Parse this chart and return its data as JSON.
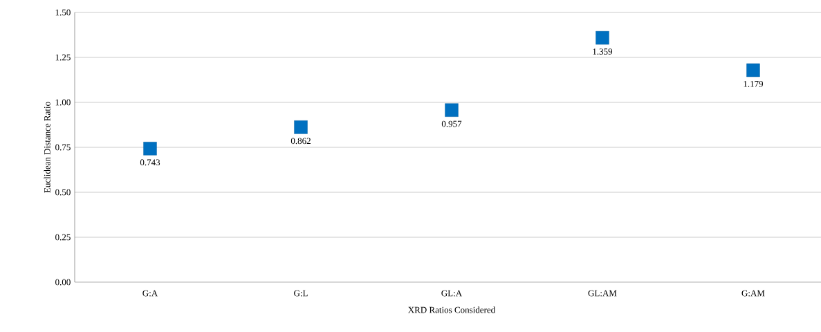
{
  "chart_data": {
    "type": "scatter",
    "xlabel": "XRD Ratios Considered",
    "ylabel": "Euclidean Distance Ratio",
    "categories": [
      "G:A",
      "G:L",
      "GL:A",
      "GL:AM",
      "G:AM"
    ],
    "values": [
      0.743,
      0.862,
      0.957,
      1.359,
      1.179
    ],
    "color": "#0070c0",
    "marker": "square",
    "data_labels": true,
    "grid": "y",
    "ylim": [
      0,
      1.5
    ],
    "yticks": [
      {
        "value": 0,
        "label": "0.00"
      },
      {
        "value": 0.25,
        "label": "0.25"
      },
      {
        "value": 0.5,
        "label": "0.50"
      },
      {
        "value": 0.75,
        "label": "0.75"
      },
      {
        "value": 1.0,
        "label": "1.00"
      },
      {
        "value": 1.25,
        "label": "1.25"
      },
      {
        "value": 1.5,
        "label": "1.50"
      }
    ]
  }
}
